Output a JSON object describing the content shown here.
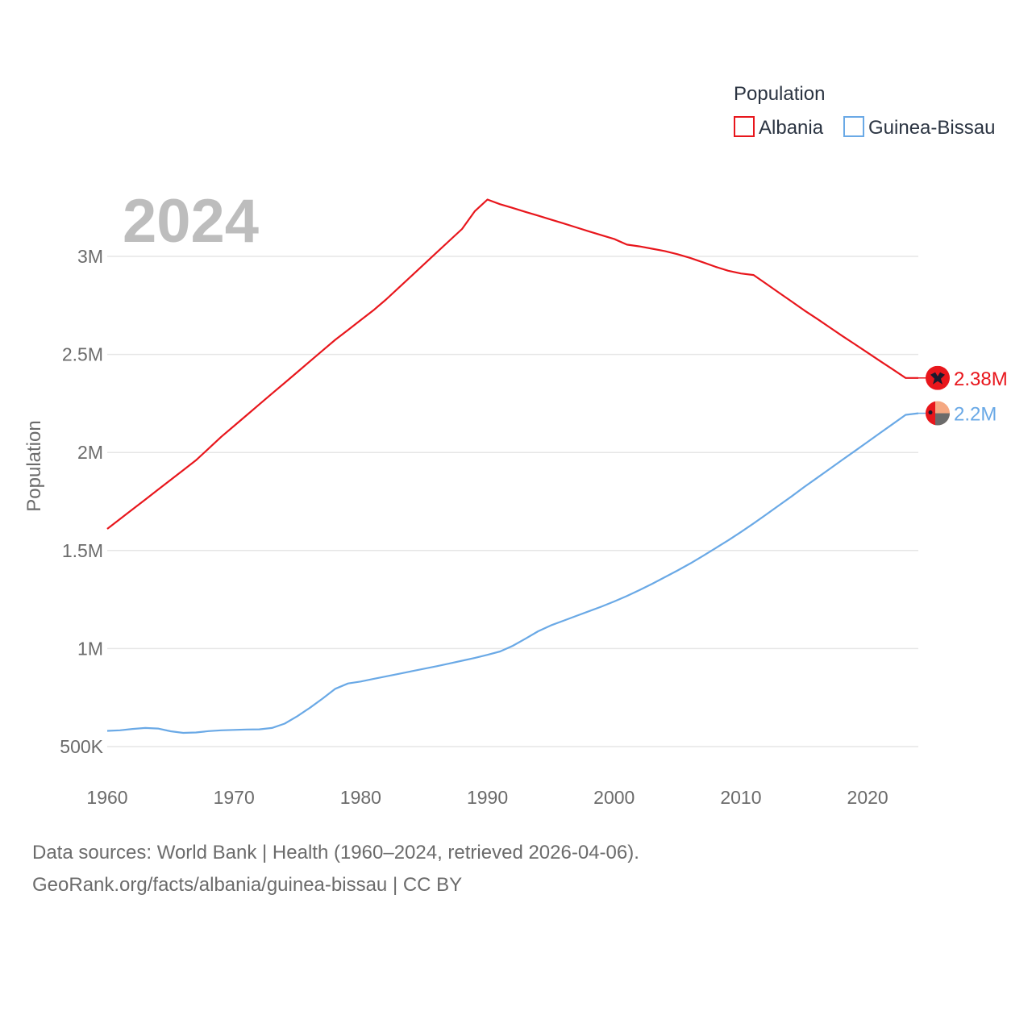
{
  "chart_data": {
    "type": "line",
    "title": "Population",
    "watermark_year": "2024",
    "xlabel": "",
    "ylabel": "Population",
    "xlim": [
      1960,
      2024
    ],
    "ylim": [
      400000,
      3400000
    ],
    "x_ticks": [
      {
        "value": 1960,
        "label": "1960"
      },
      {
        "value": 1970,
        "label": "1970"
      },
      {
        "value": 1980,
        "label": "1980"
      },
      {
        "value": 1990,
        "label": "1990"
      },
      {
        "value": 2000,
        "label": "2000"
      },
      {
        "value": 2010,
        "label": "2010"
      },
      {
        "value": 2020,
        "label": "2020"
      }
    ],
    "y_ticks": [
      {
        "value": 500000,
        "label": "500K"
      },
      {
        "value": 1000000,
        "label": "1M"
      },
      {
        "value": 1500000,
        "label": "1.5M"
      },
      {
        "value": 2000000,
        "label": "2M"
      },
      {
        "value": 2500000,
        "label": "2.5M"
      },
      {
        "value": 3000000,
        "label": "3M"
      }
    ],
    "grid": true,
    "legend": {
      "title": "Population",
      "position": "top-right"
    },
    "series": [
      {
        "name": "Albania",
        "color": "#e8161c",
        "end_label": "2.38M",
        "flag_icon": "albania-flag-icon",
        "points": [
          [
            1960,
            1610000
          ],
          [
            1961,
            1660000
          ],
          [
            1962,
            1710000
          ],
          [
            1963,
            1760000
          ],
          [
            1964,
            1810000
          ],
          [
            1965,
            1860000
          ],
          [
            1966,
            1910000
          ],
          [
            1967,
            1960000
          ],
          [
            1968,
            2020000
          ],
          [
            1969,
            2080000
          ],
          [
            1970,
            2135000
          ],
          [
            1971,
            2190000
          ],
          [
            1972,
            2245000
          ],
          [
            1973,
            2300000
          ],
          [
            1974,
            2355000
          ],
          [
            1975,
            2410000
          ],
          [
            1976,
            2465000
          ],
          [
            1977,
            2520000
          ],
          [
            1978,
            2575000
          ],
          [
            1979,
            2625000
          ],
          [
            1980,
            2675000
          ],
          [
            1981,
            2725000
          ],
          [
            1982,
            2780000
          ],
          [
            1983,
            2840000
          ],
          [
            1984,
            2900000
          ],
          [
            1985,
            2960000
          ],
          [
            1986,
            3020000
          ],
          [
            1987,
            3080000
          ],
          [
            1988,
            3140000
          ],
          [
            1989,
            3230000
          ],
          [
            1990,
            3290000
          ],
          [
            1991,
            3266000
          ],
          [
            1992,
            3247000
          ],
          [
            1993,
            3227000
          ],
          [
            1994,
            3208000
          ],
          [
            1995,
            3188000
          ],
          [
            1996,
            3168000
          ],
          [
            1997,
            3148000
          ],
          [
            1998,
            3128000
          ],
          [
            1999,
            3108000
          ],
          [
            2000,
            3089000
          ],
          [
            2001,
            3060000
          ],
          [
            2002,
            3051000
          ],
          [
            2003,
            3039000
          ],
          [
            2004,
            3027000
          ],
          [
            2005,
            3011000
          ],
          [
            2006,
            2992000
          ],
          [
            2007,
            2970000
          ],
          [
            2008,
            2947000
          ],
          [
            2009,
            2927000
          ],
          [
            2010,
            2913000
          ],
          [
            2011,
            2905000
          ],
          [
            2012,
            2860000
          ],
          [
            2013,
            2815000
          ],
          [
            2014,
            2770000
          ],
          [
            2015,
            2725000
          ],
          [
            2016,
            2682000
          ],
          [
            2017,
            2638000
          ],
          [
            2018,
            2594000
          ],
          [
            2019,
            2552000
          ],
          [
            2020,
            2509000
          ],
          [
            2021,
            2466000
          ],
          [
            2022,
            2423000
          ],
          [
            2023,
            2380000
          ],
          [
            2024,
            2380000
          ]
        ]
      },
      {
        "name": "Guinea-Bissau",
        "color": "#6aa9e6",
        "end_label": "2.2M",
        "flag_icon": "guinea-bissau-flag-icon",
        "points": [
          [
            1960,
            580000
          ],
          [
            1961,
            583000
          ],
          [
            1962,
            590000
          ],
          [
            1963,
            595000
          ],
          [
            1964,
            592000
          ],
          [
            1965,
            578000
          ],
          [
            1966,
            570000
          ],
          [
            1967,
            572000
          ],
          [
            1968,
            579000
          ],
          [
            1969,
            583000
          ],
          [
            1970,
            585000
          ],
          [
            1971,
            587000
          ],
          [
            1972,
            588000
          ],
          [
            1973,
            595000
          ],
          [
            1974,
            617000
          ],
          [
            1975,
            655000
          ],
          [
            1976,
            698000
          ],
          [
            1977,
            745000
          ],
          [
            1978,
            795000
          ],
          [
            1979,
            822000
          ],
          [
            1980,
            832000
          ],
          [
            1981,
            845000
          ],
          [
            1982,
            858000
          ],
          [
            1983,
            871000
          ],
          [
            1984,
            884000
          ],
          [
            1985,
            897000
          ],
          [
            1986,
            910000
          ],
          [
            1987,
            924000
          ],
          [
            1988,
            938000
          ],
          [
            1989,
            952000
          ],
          [
            1990,
            968000
          ],
          [
            1991,
            985000
          ],
          [
            1992,
            1014000
          ],
          [
            1993,
            1050000
          ],
          [
            1994,
            1088000
          ],
          [
            1995,
            1118000
          ],
          [
            1996,
            1142000
          ],
          [
            1997,
            1166000
          ],
          [
            1998,
            1190000
          ],
          [
            1999,
            1214000
          ],
          [
            2000,
            1240000
          ],
          [
            2001,
            1268000
          ],
          [
            2002,
            1298000
          ],
          [
            2003,
            1330000
          ],
          [
            2004,
            1364000
          ],
          [
            2005,
            1398000
          ],
          [
            2006,
            1434000
          ],
          [
            2007,
            1472000
          ],
          [
            2008,
            1512000
          ],
          [
            2009,
            1552000
          ],
          [
            2010,
            1594000
          ],
          [
            2011,
            1638000
          ],
          [
            2012,
            1684000
          ],
          [
            2013,
            1730000
          ],
          [
            2014,
            1776000
          ],
          [
            2015,
            1824000
          ],
          [
            2016,
            1870000
          ],
          [
            2017,
            1916000
          ],
          [
            2018,
            1962000
          ],
          [
            2019,
            2008000
          ],
          [
            2020,
            2054000
          ],
          [
            2021,
            2100000
          ],
          [
            2022,
            2146000
          ],
          [
            2023,
            2192000
          ],
          [
            2024,
            2200000
          ]
        ]
      }
    ]
  },
  "footer": {
    "sources": "Data sources: World Bank | Health (1960–2024, retrieved 2026-04-06).",
    "link": "GeoRank.org/facts/albania/guinea-bissau | CC BY"
  }
}
